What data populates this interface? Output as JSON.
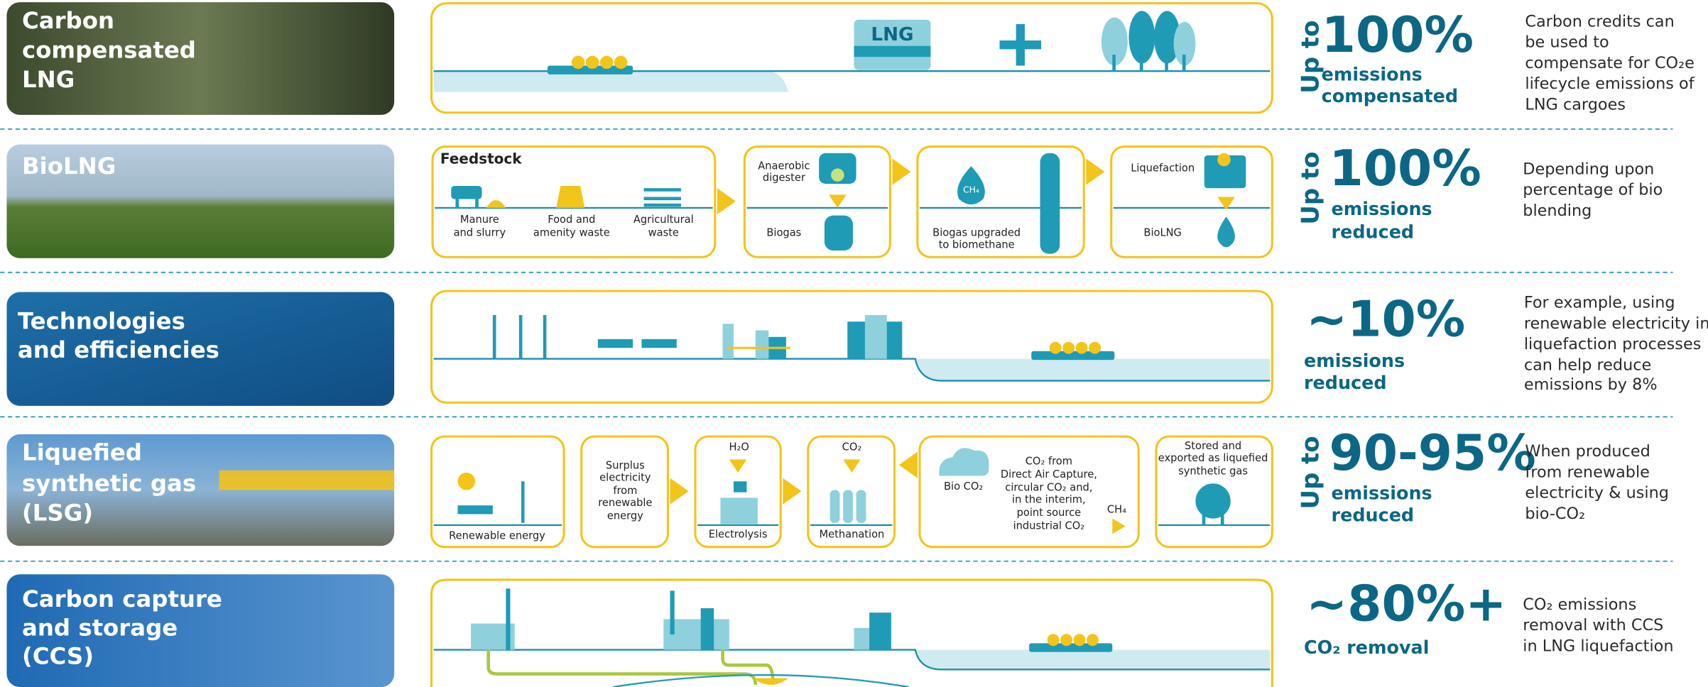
{
  "rows": [
    {
      "label": [
        "Carbon",
        "compensated",
        "LNG"
      ],
      "diagram": [
        [
          "LNG"
        ]
      ],
      "stat": {
        "prefix": "Up to",
        "value": "100%",
        "caption": [
          "emissions",
          "compensated"
        ]
      },
      "description": [
        "Carbon credits can",
        "be used to",
        "compensate for CO₂e",
        "lifecycle emissions of",
        "LNG cargoes"
      ]
    },
    {
      "label": [
        "BioLNG"
      ],
      "diagram": [
        [
          "Feedstock"
        ],
        [
          "Manure",
          "and slurry"
        ],
        [
          "Food and",
          "amenity waste"
        ],
        [
          "Agricultural",
          "waste"
        ],
        [
          "Anaerobic",
          "digester"
        ],
        [
          "Biogas"
        ],
        [
          "CH₄"
        ],
        [
          "Biogas upgraded",
          "to biomethane"
        ],
        [
          "Liquefaction"
        ],
        [
          "BioLNG"
        ]
      ],
      "stat": {
        "prefix": "Up to",
        "value": "100%",
        "caption": [
          "emissions",
          "reduced"
        ]
      },
      "description": [
        "Depending upon",
        "percentage of bio",
        "blending"
      ]
    },
    {
      "label": [
        "Technologies",
        "and efficiencies"
      ],
      "stat": {
        "value": "~10%",
        "caption": [
          "emissions",
          "reduced"
        ]
      },
      "description": [
        "For example, using",
        "renewable electricity in",
        "liquefaction processes",
        "can help reduce",
        "emissions by 8%"
      ]
    },
    {
      "label": [
        "Liquefied",
        "synthetic gas",
        "(LSG)"
      ],
      "diagram": [
        [
          "Renewable energy"
        ],
        [
          "Surplus",
          "electricity",
          "from",
          "renewable",
          "energy"
        ],
        [
          "H₂O"
        ],
        [
          "Electrolysis"
        ],
        [
          "CO₂"
        ],
        [
          "Methanation"
        ],
        [
          "Bio CO₂"
        ],
        [
          "CO₂ from",
          "Direct Air Capture,",
          "circular CO₂ and,",
          "in the interim,",
          "point source",
          "industrial CO₂"
        ],
        [
          "CH₄"
        ],
        [
          "Stored and",
          "exported as liquefied",
          "synthetic gas"
        ]
      ],
      "stat": {
        "prefix": "Up to",
        "value": "90-95%",
        "caption": [
          "emissions",
          "reduced"
        ]
      },
      "description": [
        "When produced",
        "from renewable",
        "electricity & using",
        "bio-CO₂"
      ]
    },
    {
      "label": [
        "Carbon capture",
        "and storage",
        "(CCS)"
      ],
      "stat": {
        "value": "~80%+",
        "caption": [
          "CO₂ removal"
        ]
      },
      "description": [
        "CO₂ emissions",
        "removal with CCS",
        "in LNG liquefaction"
      ]
    }
  ]
}
